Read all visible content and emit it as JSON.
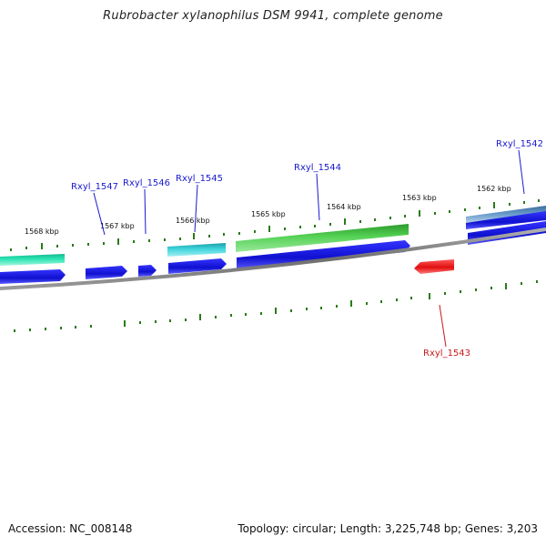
{
  "title": "Rubrobacter xylanophilus DSM 9941, complete genome",
  "footer": {
    "accession": "Accession: NC_008148",
    "summary": "Topology: circular; Length: 3,225,748 bp; Genes: 3,203"
  },
  "kbp_labels": [
    "1568 kbp",
    "1567 kbp",
    "1566 kbp",
    "1565 kbp",
    "1564 kbp",
    "1563 kbp",
    "1562 kbp"
  ],
  "gene_labels": [
    {
      "text": "Rxyl_1547",
      "color": "#1a1acc"
    },
    {
      "text": "Rxyl_1546",
      "color": "#1a1acc"
    },
    {
      "text": "Rxyl_1545",
      "color": "#1a1acc"
    },
    {
      "text": "Rxyl_1544",
      "color": "#1a1acc"
    },
    {
      "text": "Rxyl_1542",
      "color": "#1a1acc"
    },
    {
      "text": "Rxyl_1543",
      "color": "#cc1a1a"
    }
  ],
  "colors": {
    "backbone": "#7a7a7a",
    "cds_forward": "#1414d8",
    "cds_reverse": "#e01818",
    "tick_green": "#2a7a1a",
    "feature_green": "#3fbf3f",
    "feature_cyan": "#2ec4c4",
    "feature_teal": "#26d0a0",
    "feature_steel": "#4a7fb0"
  }
}
